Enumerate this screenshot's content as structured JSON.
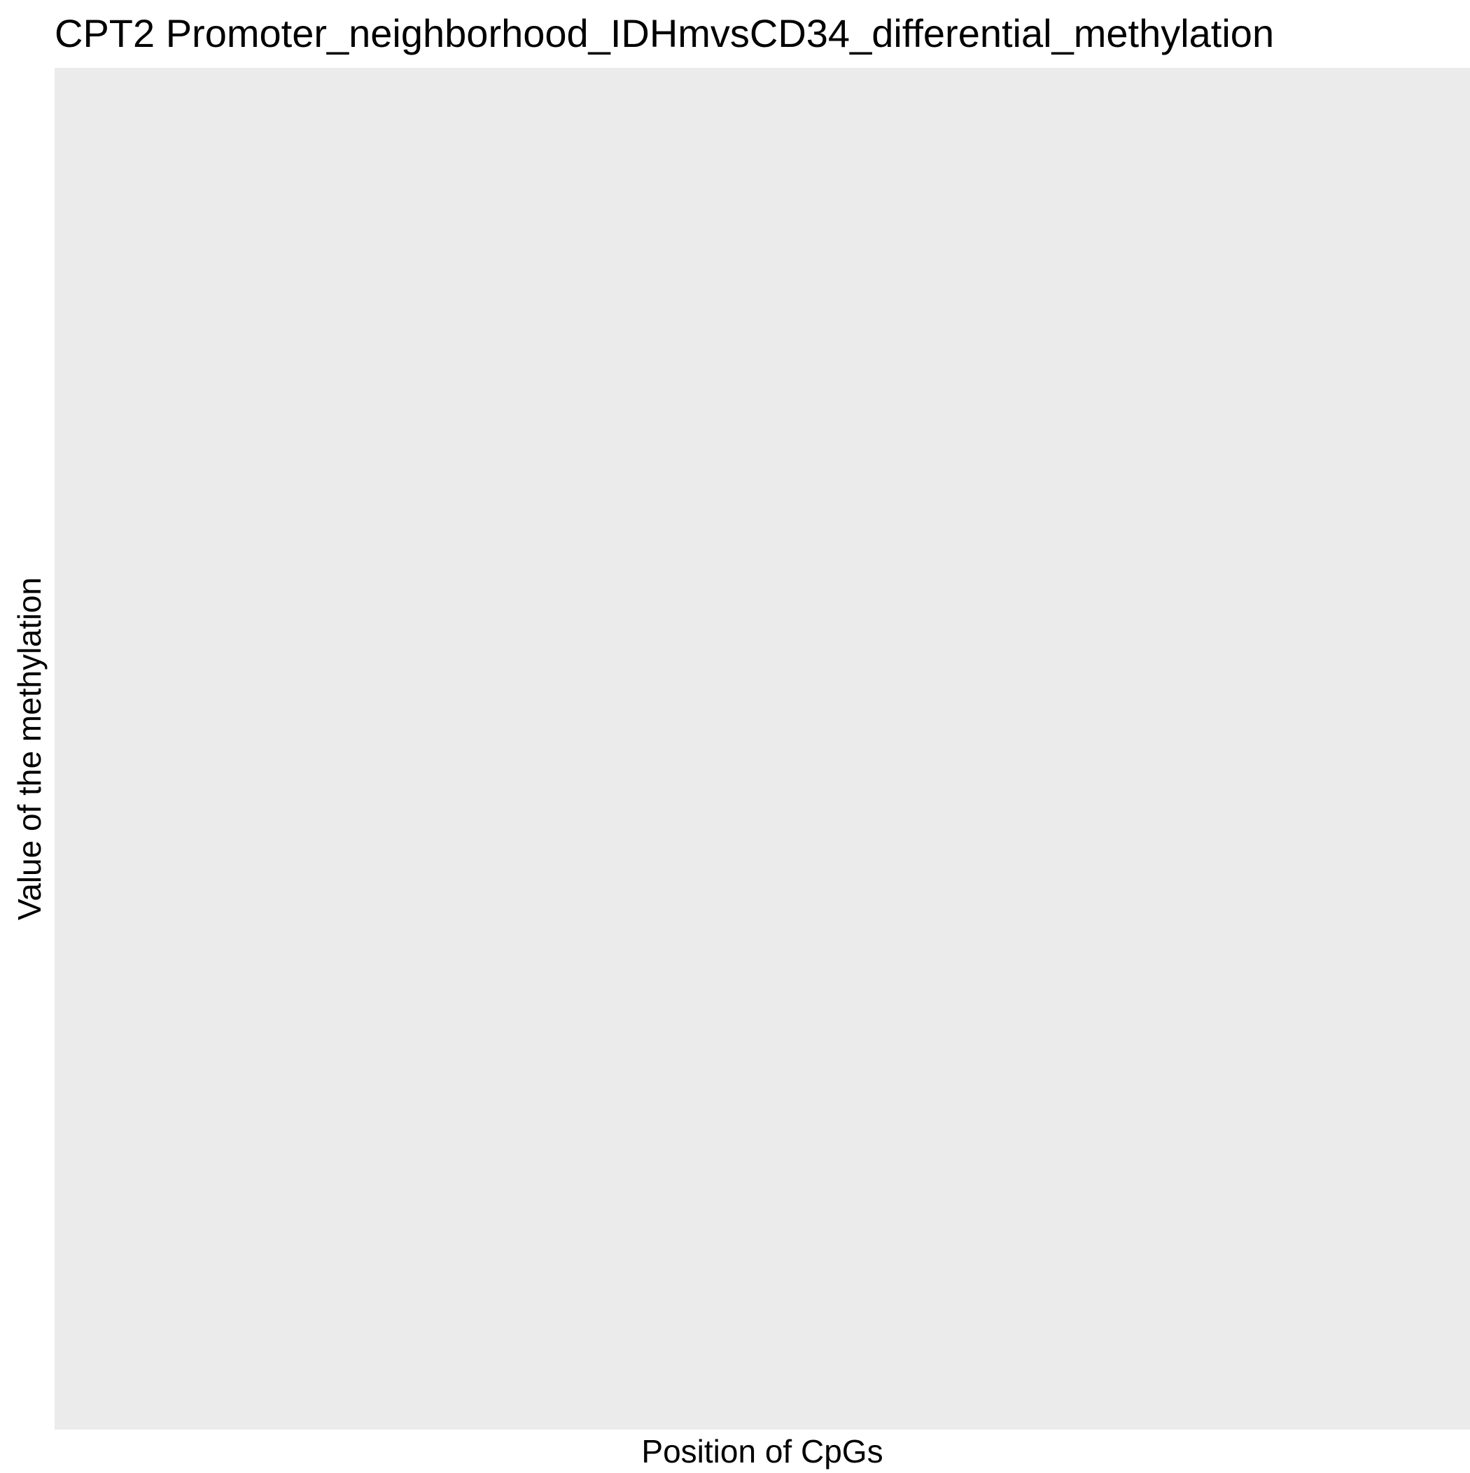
{
  "chart_data": {
    "type": "scatter",
    "title": "CPT2 Promoter_neighborhood_IDHmvsCD34_differential_methylation",
    "xlabel": "Position of CpGs",
    "ylabel": "Value of the methylation",
    "series": [],
    "grid": false,
    "panel_background": "#ebebeb"
  }
}
